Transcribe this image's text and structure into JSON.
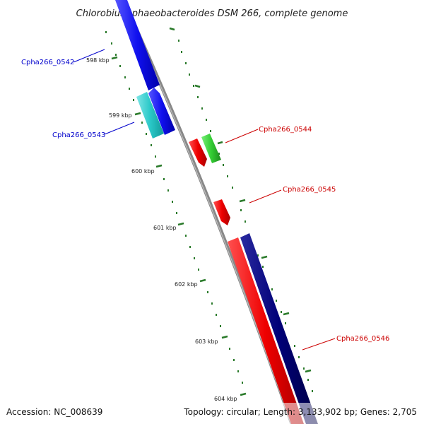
{
  "title": "Chlorobium phaeobacteroides DSM 266, complete genome",
  "footer": {
    "accession": "Accession: NC_008639",
    "topology": "Topology: circular; Length: 3,133,902 bp; Genes: 2,705"
  },
  "ticks": [
    "598 kbp",
    "599 kbp",
    "600 kbp",
    "601 kbp",
    "602 kbp",
    "603 kbp",
    "604 kbp"
  ],
  "genes": [
    {
      "id": "Cpha266_0542",
      "strand": "reverse",
      "color": "#1010ee"
    },
    {
      "id": "Cpha266_0543",
      "strand": "reverse",
      "color": "#2ac8c8"
    },
    {
      "id": "Cpha266_0544",
      "strand": "forward",
      "color": "#dd0000"
    },
    {
      "id": "Cpha266_0545",
      "strand": "forward",
      "color": "#dd0000"
    },
    {
      "id": "Cpha266_0546",
      "strand": "forward",
      "color": "#dd0000"
    }
  ],
  "colors": {
    "backbone": "#888888",
    "tick": "#2a7a2a",
    "reverse_label": "#0000cc",
    "forward_label": "#cc0000",
    "extra_blue": "#1010ee",
    "green_feature": "#33cc33",
    "navy_feature": "#000077"
  }
}
